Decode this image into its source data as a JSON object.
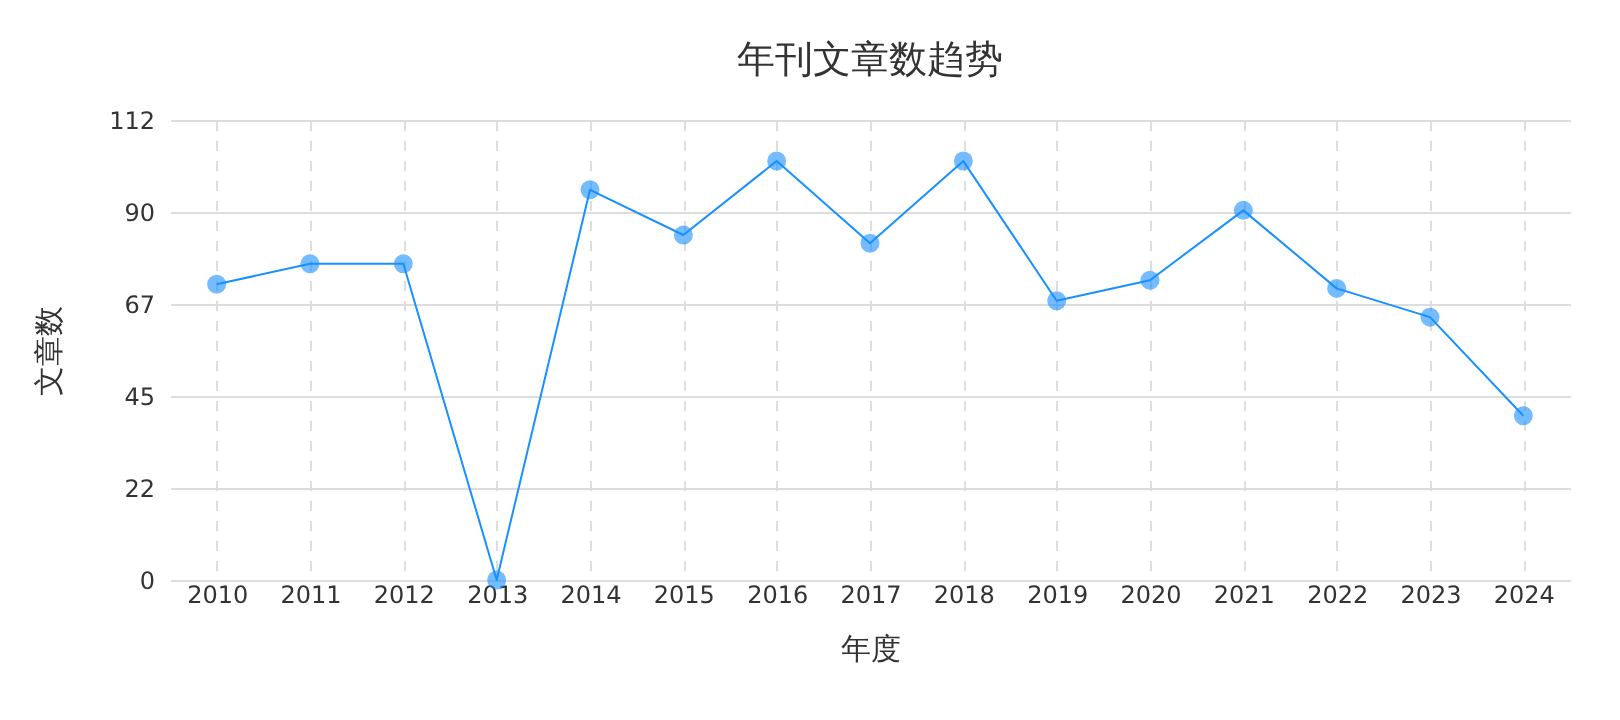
{
  "chart_data": {
    "type": "line",
    "title": "年刊文章数趋势",
    "xlabel": "年度",
    "ylabel": "文章数",
    "categories": [
      "2010",
      "2011",
      "2012",
      "2013",
      "2014",
      "2015",
      "2016",
      "2017",
      "2018",
      "2019",
      "2020",
      "2021",
      "2022",
      "2023",
      "2024"
    ],
    "series": [
      {
        "color": "#1890ff",
        "values": [
          72,
          77,
          77,
          0,
          95,
          84,
          102,
          82,
          102,
          68,
          73,
          90,
          71,
          64,
          40
        ]
      }
    ],
    "ylim": [
      0,
      112
    ],
    "yticks": [
      0,
      {
        "value": 22.4,
        "label": "22"
      },
      {
        "value": 44.8,
        "label": "45"
      },
      {
        "value": 67.2,
        "label": "67"
      },
      {
        "value": 89.6,
        "label": "90"
      },
      112
    ],
    "grid": true,
    "marker": "circle",
    "line_style": "solid"
  }
}
